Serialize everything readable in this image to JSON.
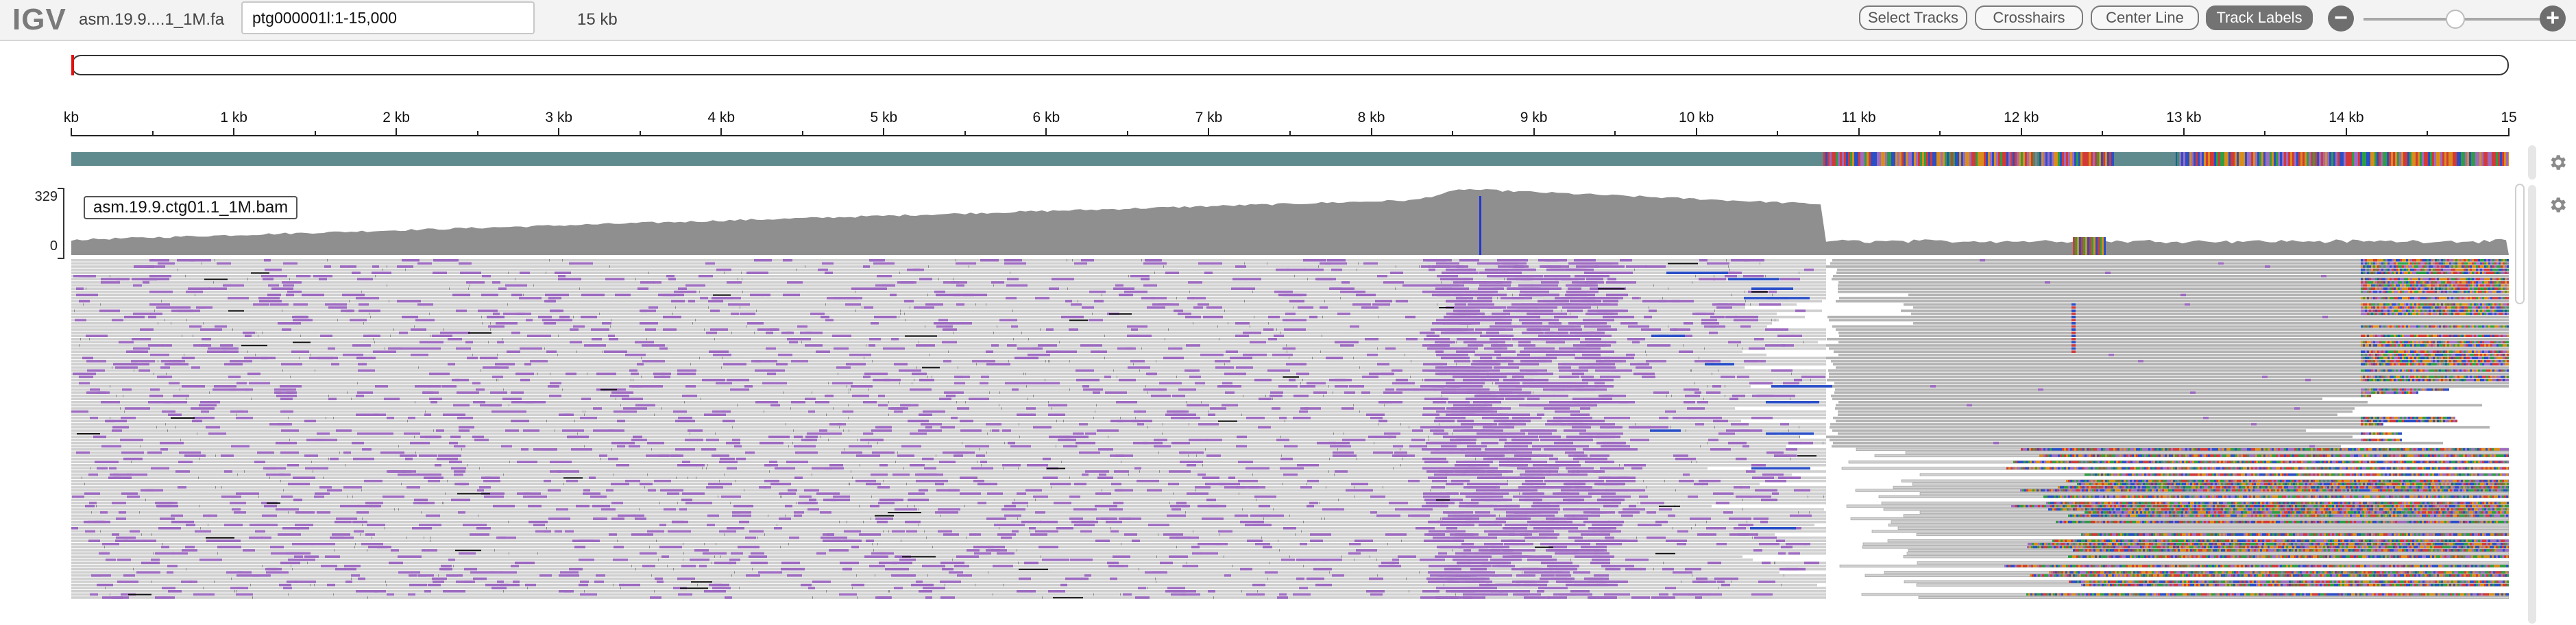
{
  "navbar": {
    "logo": "IGV",
    "genome": "asm.19.9....1_1M.fa",
    "locus": "ptg000001l:1-15,000",
    "window_width": "15 kb",
    "buttons": {
      "select_tracks": "Select Tracks",
      "crosshairs": "Crosshairs",
      "center_line": "Center Line",
      "track_labels": "Track Labels"
    },
    "zoom_out_icon": "minus-circle-icon",
    "zoom_in_icon": "plus-circle-icon"
  },
  "ruler": {
    "labels": [
      "kb",
      "1 kb",
      "2 kb",
      "3 kb",
      "4 kb",
      "5 kb",
      "6 kb",
      "7 kb",
      "8 kb",
      "9 kb",
      "10 kb",
      "11 kb",
      "12 kb",
      "13 kb",
      "14 kb",
      "15"
    ]
  },
  "track": {
    "name": "asm.19.9.ctg01.1_1M.bam",
    "coverage_max": "329",
    "coverage_min": "0",
    "settings_icon": "gear-icon"
  },
  "colors": {
    "coverage": "#8f8f8f",
    "read": "#d0d0d0",
    "insertion": "#9d6bc0",
    "deletion": "#111111",
    "sequence_track": "#5f8a8e",
    "accent": "#e01010"
  }
}
